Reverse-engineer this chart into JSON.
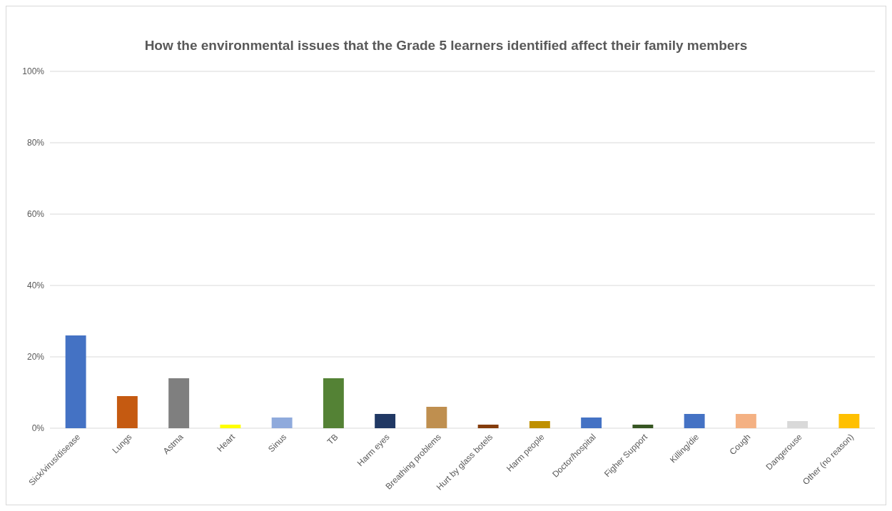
{
  "chart_data": {
    "type": "bar",
    "title": "How the environmental issues that the Grade 5 learners identified affect their family members",
    "categories": [
      "Sick/virus/disease",
      "Lungs",
      "Astma",
      "Heart",
      "Sinus",
      "TB",
      "Harm eyes",
      "Breathing problems",
      "Hurt by glass botels",
      "Harm people",
      "Doctor/hospital",
      "Figher Support",
      "Killing/die",
      "Cough",
      "Dangerouse",
      "Other (no reason)"
    ],
    "values": [
      26,
      9,
      14,
      1,
      3,
      14,
      4,
      6,
      1,
      2,
      3,
      1,
      4,
      4,
      2,
      4
    ],
    "colors": [
      "#4472c4",
      "#c55a11",
      "#7f7f7f",
      "#ffff00",
      "#8faadc",
      "#548235",
      "#203864",
      "#bf8f4f",
      "#843c0c",
      "#bf9000",
      "#4472c4",
      "#375623",
      "#4472c4",
      "#f4b183",
      "#d9d9d9",
      "#ffc000"
    ],
    "ylim": [
      0,
      100
    ],
    "yticks": [
      {
        "value": 0,
        "label": "0%"
      },
      {
        "value": 20,
        "label": "20%"
      },
      {
        "value": 40,
        "label": "40%"
      },
      {
        "value": 60,
        "label": "60%"
      },
      {
        "value": 80,
        "label": "80%"
      },
      {
        "value": 100,
        "label": "100%"
      }
    ],
    "grid": "y"
  }
}
